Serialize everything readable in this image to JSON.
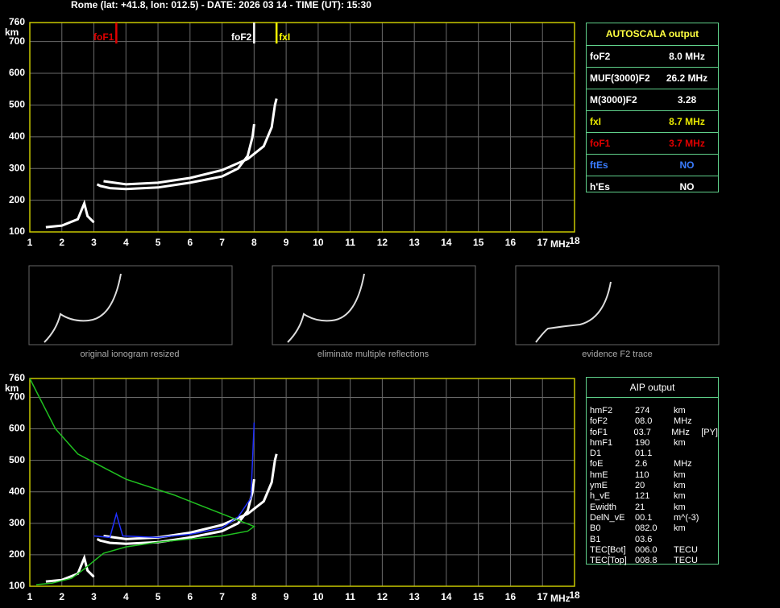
{
  "header": "Rome (lat: +41.8, lon: 012.5) - DATE: 2026 03 14 - TIME (UT): 15:30",
  "chart_data": [
    {
      "type": "line",
      "y_label": "km",
      "x_label": "MHz",
      "xlim": [
        1,
        18
      ],
      "ylim": [
        100,
        760
      ],
      "xticks": [
        1,
        2,
        3,
        4,
        5,
        6,
        7,
        8,
        9,
        10,
        11,
        12,
        13,
        14,
        15,
        16,
        17,
        18
      ],
      "yticks": [
        100,
        200,
        300,
        400,
        500,
        600,
        700,
        760
      ],
      "grid": true,
      "series": [
        {
          "color": "#ffffff",
          "x": [
            3.1,
            3.2,
            3.5,
            4,
            5,
            6,
            7,
            7.5,
            7.8,
            7.95,
            8.0
          ],
          "values": [
            250,
            245,
            238,
            235,
            240,
            255,
            275,
            300,
            340,
            400,
            440
          ]
        },
        {
          "color": "#ffffff",
          "x": [
            3.3,
            4,
            5,
            6,
            7,
            7.8,
            8.3,
            8.55,
            8.65,
            8.7
          ],
          "values": [
            260,
            250,
            255,
            270,
            295,
            330,
            370,
            430,
            500,
            520
          ]
        },
        {
          "color": "#ffffff",
          "x": [
            1.5,
            2,
            2.5,
            2.7,
            2.8,
            3.0
          ],
          "values": [
            115,
            120,
            140,
            190,
            150,
            130
          ]
        }
      ],
      "markers": [
        {
          "label": "foF1",
          "value": 3.7,
          "color": "#e00000"
        },
        {
          "label": "foF2",
          "value": 8.0,
          "color": "#ffffff"
        },
        {
          "label": "fxI",
          "value": 8.7,
          "color": "#ffff00"
        }
      ]
    },
    {
      "type": "line",
      "y_label": "km",
      "x_label": "MHz",
      "xlim": [
        1,
        18
      ],
      "ylim": [
        100,
        760
      ],
      "xticks": [
        1,
        2,
        3,
        4,
        5,
        6,
        7,
        8,
        9,
        10,
        11,
        12,
        13,
        14,
        15,
        16,
        17,
        18
      ],
      "yticks": [
        100,
        200,
        300,
        400,
        500,
        600,
        700,
        760
      ],
      "grid": true,
      "series": [
        {
          "color": "#ffffff",
          "x": [
            3.1,
            3.2,
            3.5,
            4,
            5,
            6,
            7,
            7.5,
            7.8,
            7.95,
            8.0
          ],
          "values": [
            250,
            245,
            238,
            235,
            240,
            255,
            275,
            300,
            340,
            400,
            440
          ]
        },
        {
          "color": "#ffffff",
          "x": [
            3.3,
            4,
            5,
            6,
            7,
            7.8,
            8.3,
            8.55,
            8.65,
            8.7
          ],
          "values": [
            260,
            250,
            255,
            270,
            295,
            330,
            370,
            430,
            500,
            520
          ]
        },
        {
          "color": "#ffffff",
          "x": [
            1.5,
            2,
            2.5,
            2.7,
            2.8,
            3.0
          ],
          "values": [
            115,
            120,
            140,
            190,
            150,
            130
          ]
        },
        {
          "color": "#2030ff",
          "x": [
            3.0,
            3.5,
            3.7,
            3.9,
            5,
            6,
            7,
            7.5,
            7.9,
            8.0
          ],
          "values": [
            260,
            255,
            330,
            260,
            255,
            265,
            285,
            320,
            380,
            620
          ]
        },
        {
          "color": "#20c020",
          "x": [
            1,
            1.3,
            1.8,
            2.5,
            4,
            5.5,
            6.5,
            7.5,
            8.0,
            7.8,
            7,
            5,
            4,
            3.3,
            3.0,
            2.7,
            2.3,
            1.7,
            1.2
          ],
          "values": [
            760,
            700,
            600,
            520,
            440,
            390,
            350,
            310,
            290,
            275,
            260,
            240,
            225,
            205,
            180,
            155,
            125,
            110,
            105
          ]
        }
      ]
    }
  ],
  "thumbnails": [
    {
      "caption": "original ionogram resized"
    },
    {
      "caption": "eliminate multiple reflections"
    },
    {
      "caption": "evidence F2 trace"
    }
  ],
  "autoscala": {
    "title": "AUTOSCALA output",
    "rows": [
      {
        "label": "foF2",
        "value": "8.0 MHz",
        "color": "#ffffff"
      },
      {
        "label": "MUF(3000)F2",
        "value": "26.2 MHz",
        "color": "#ffffff"
      },
      {
        "label": "M(3000)F2",
        "value": "3.28",
        "color": "#ffffff"
      },
      {
        "label": "fxI",
        "value": "8.7 MHz",
        "color": "#e8e800"
      },
      {
        "label": "foF1",
        "value": "3.7 MHz",
        "color": "#e00000"
      },
      {
        "label": "ftEs",
        "value": "NO",
        "color": "#3a7cff"
      },
      {
        "label": "h'Es",
        "value": "NO",
        "color": "#ffffff"
      }
    ]
  },
  "aip": {
    "title": "AIP output",
    "rows": [
      [
        "hmF2",
        "274",
        "km",
        ""
      ],
      [
        "foF2",
        "08.0",
        "MHz",
        ""
      ],
      [
        "foF1",
        "03.7",
        "MHz",
        "[PY]"
      ],
      [
        "hmF1",
        "190",
        "km",
        ""
      ],
      [
        "D1",
        "01.1",
        "",
        ""
      ],
      [
        "foE",
        "2.6",
        "MHz",
        ""
      ],
      [
        "hmE",
        "110",
        "km",
        ""
      ],
      [
        "ymE",
        "20",
        "km",
        ""
      ],
      [
        "h_vE",
        "121",
        "km",
        ""
      ],
      [
        "Ewidth",
        "21",
        "km",
        ""
      ],
      [
        "DelN_vE",
        "00.1",
        "m^(-3)",
        ""
      ],
      [
        "B0",
        "082.0",
        "km",
        ""
      ],
      [
        "B1",
        "03.6",
        "",
        ""
      ],
      [
        "TEC[Bot]",
        "006.0",
        "TECU",
        ""
      ],
      [
        "TEC[Top]",
        "008.8",
        "TECU",
        ""
      ]
    ]
  }
}
